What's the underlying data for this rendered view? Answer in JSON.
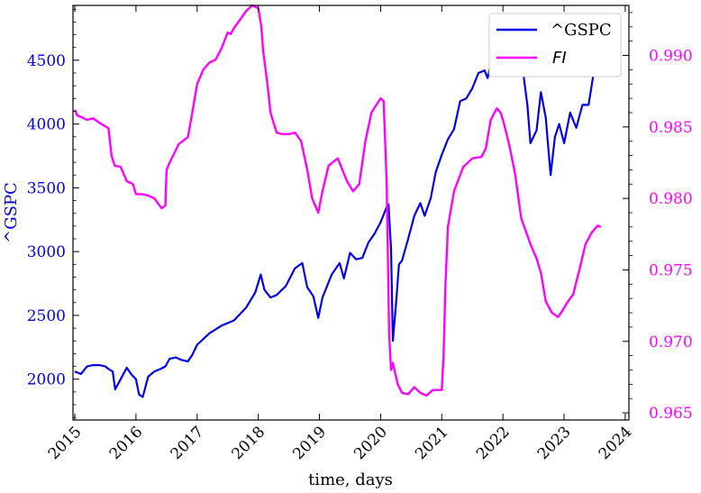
{
  "chart_data": {
    "type": "line",
    "xlabel": "time, days",
    "ylabel_left": "^GSPC",
    "ylabel_right": "",
    "x_ticks": [
      "2015",
      "2016",
      "2017",
      "2018",
      "2019",
      "2020",
      "2021",
      "2022",
      "2023",
      "2024"
    ],
    "xlim": [
      2014.97,
      2024.06
    ],
    "ylim_left": [
      1680,
      4930
    ],
    "ylim_right": [
      0.9645,
      0.9935
    ],
    "y_ticks_left": [
      2000,
      2500,
      3000,
      3500,
      4000,
      4500
    ],
    "y_ticks_right": [
      0.965,
      0.97,
      0.975,
      0.98,
      0.985,
      0.99
    ],
    "y_ticks_right_labels": [
      "0.965",
      "0.970",
      "0.975",
      "0.980",
      "0.985",
      "0.990"
    ],
    "grid": false,
    "legend_position": "top-right",
    "colors": {
      "gspc": "#0000ee",
      "fi": "#ff00ff",
      "axis": "#000000"
    },
    "series": [
      {
        "name": "^GSPC",
        "axis": "left",
        "color": "#0000ee",
        "x": [
          2015.0,
          2015.1,
          2015.2,
          2015.3,
          2015.4,
          2015.5,
          2015.55,
          2015.62,
          2015.66,
          2015.75,
          2015.85,
          2015.92,
          2016.0,
          2016.05,
          2016.11,
          2016.2,
          2016.3,
          2016.4,
          2016.48,
          2016.55,
          2016.65,
          2016.75,
          2016.85,
          2016.92,
          2017.0,
          2017.2,
          2017.4,
          2017.6,
          2017.8,
          2017.95,
          2018.04,
          2018.1,
          2018.2,
          2018.3,
          2018.45,
          2018.6,
          2018.72,
          2018.8,
          2018.9,
          2018.98,
          2019.05,
          2019.2,
          2019.33,
          2019.4,
          2019.5,
          2019.6,
          2019.7,
          2019.8,
          2019.9,
          2020.0,
          2020.1,
          2020.13,
          2020.17,
          2020.2,
          2020.25,
          2020.3,
          2020.35,
          2020.45,
          2020.55,
          2020.65,
          2020.72,
          2020.82,
          2020.9,
          2021.0,
          2021.1,
          2021.2,
          2021.3,
          2021.4,
          2021.5,
          2021.6,
          2021.7,
          2021.75,
          2021.85,
          2021.95,
          2022.0,
          2022.1,
          2022.2,
          2022.28,
          2022.4,
          2022.45,
          2022.55,
          2022.62,
          2022.7,
          2022.78,
          2022.85,
          2022.92,
          2023.0,
          2023.1,
          2023.2,
          2023.3,
          2023.4,
          2023.5,
          2023.58
        ],
        "values": [
          2060,
          2040,
          2100,
          2110,
          2110,
          2100,
          2080,
          2060,
          1920,
          2000,
          2090,
          2040,
          2000,
          1880,
          1860,
          2020,
          2060,
          2080,
          2100,
          2160,
          2170,
          2150,
          2140,
          2190,
          2270,
          2360,
          2420,
          2460,
          2560,
          2680,
          2820,
          2700,
          2640,
          2660,
          2730,
          2870,
          2910,
          2720,
          2650,
          2480,
          2640,
          2820,
          2910,
          2790,
          2990,
          2940,
          2950,
          3070,
          3140,
          3230,
          3350,
          3370,
          3020,
          2300,
          2580,
          2900,
          2930,
          3100,
          3280,
          3380,
          3280,
          3420,
          3620,
          3760,
          3880,
          3960,
          4180,
          4200,
          4280,
          4400,
          4420,
          4360,
          4580,
          4700,
          4780,
          4460,
          4500,
          4590,
          4150,
          3850,
          3950,
          4250,
          4050,
          3600,
          3900,
          4000,
          3850,
          4090,
          3970,
          4150,
          4150,
          4450,
          4580
        ]
      },
      {
        "name": "FI",
        "axis": "right",
        "color": "#ff00ff",
        "x": [
          2015.0,
          2015.04,
          2015.1,
          2015.2,
          2015.3,
          2015.4,
          2015.55,
          2015.6,
          2015.65,
          2015.75,
          2015.85,
          2015.95,
          2016.0,
          2016.1,
          2016.2,
          2016.3,
          2016.42,
          2016.48,
          2016.5,
          2016.55,
          2016.7,
          2016.85,
          2016.92,
          2017.0,
          2017.1,
          2017.2,
          2017.3,
          2017.4,
          2017.5,
          2017.55,
          2017.6,
          2017.7,
          2017.8,
          2017.9,
          2018.0,
          2018.05,
          2018.08,
          2018.15,
          2018.2,
          2018.3,
          2018.4,
          2018.5,
          2018.6,
          2018.7,
          2018.8,
          2018.88,
          2018.98,
          2019.05,
          2019.15,
          2019.3,
          2019.45,
          2019.55,
          2019.65,
          2019.75,
          2019.85,
          2020.0,
          2020.05,
          2020.1,
          2020.14,
          2020.17,
          2020.2,
          2020.28,
          2020.35,
          2020.45,
          2020.55,
          2020.65,
          2020.75,
          2020.85,
          2021.0,
          2021.03,
          2021.06,
          2021.1,
          2021.2,
          2021.35,
          2021.5,
          2021.65,
          2021.72,
          2021.8,
          2021.9,
          2021.96,
          2022.0,
          2022.1,
          2022.2,
          2022.3,
          2022.45,
          2022.55,
          2022.62,
          2022.7,
          2022.8,
          2022.9,
          2022.98,
          2023.05,
          2023.15,
          2023.25,
          2023.35,
          2023.45,
          2023.55,
          2023.6
        ],
        "values": [
          0.9862,
          0.9858,
          0.9857,
          0.9855,
          0.9856,
          0.9853,
          0.9849,
          0.983,
          0.9823,
          0.9822,
          0.9812,
          0.981,
          0.9803,
          0.9803,
          0.9802,
          0.98,
          0.9793,
          0.9795,
          0.982,
          0.9825,
          0.9838,
          0.9843,
          0.986,
          0.988,
          0.989,
          0.9895,
          0.9897,
          0.9905,
          0.9916,
          0.9915,
          0.9919,
          0.9925,
          0.9931,
          0.9935,
          0.9933,
          0.992,
          0.9903,
          0.988,
          0.986,
          0.9846,
          0.9845,
          0.9845,
          0.9846,
          0.984,
          0.982,
          0.98,
          0.979,
          0.9805,
          0.9823,
          0.9828,
          0.9812,
          0.9805,
          0.981,
          0.984,
          0.986,
          0.987,
          0.9868,
          0.981,
          0.9705,
          0.968,
          0.9685,
          0.967,
          0.9664,
          0.9663,
          0.9668,
          0.9664,
          0.9662,
          0.9666,
          0.9666,
          0.969,
          0.974,
          0.978,
          0.9805,
          0.9822,
          0.9828,
          0.9829,
          0.9835,
          0.9855,
          0.9863,
          0.986,
          0.9855,
          0.9838,
          0.9817,
          0.9786,
          0.9768,
          0.9758,
          0.9748,
          0.9728,
          0.972,
          0.9717,
          0.9722,
          0.9727,
          0.9733,
          0.975,
          0.9768,
          0.9776,
          0.9781,
          0.978
        ]
      }
    ]
  }
}
